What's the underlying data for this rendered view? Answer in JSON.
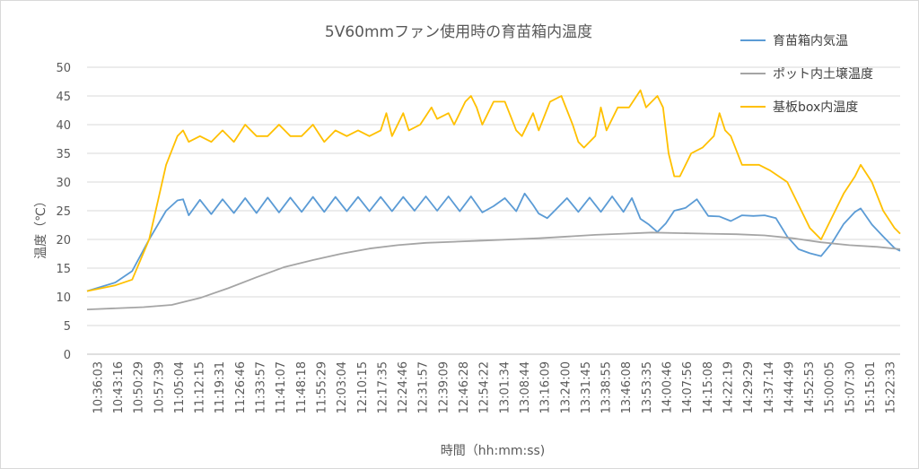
{
  "chart_data": {
    "type": "line",
    "title": "5V60mmファン使用時の育苗箱内温度",
    "xlabel": "時間（hh:mm:ss)",
    "ylabel": "温度（℃）",
    "ylim": [
      0,
      50
    ],
    "yticks": [
      0,
      5,
      10,
      15,
      20,
      25,
      30,
      35,
      40,
      45,
      50
    ],
    "xlim": [
      0,
      288
    ],
    "xtick_labels": [
      "10:36:03",
      "10:43:16",
      "10:50:29",
      "10:57:39",
      "11:05:04",
      "11:12:15",
      "11:19:31",
      "11:26:46",
      "11:33:57",
      "11:41:07",
      "11:48:18",
      "11:55:29",
      "12:03:04",
      "12:10:15",
      "12:17:35",
      "12:24:46",
      "12:31:57",
      "12:39:09",
      "12:46:28",
      "12:54:22",
      "13:01:34",
      "13:08:44",
      "13:16:09",
      "13:24:00",
      "13:31:45",
      "13:38:55",
      "13:46:08",
      "13:53:35",
      "14:00:46",
      "14:07:56",
      "14:15:08",
      "14:22:19",
      "14:29:29",
      "14:37:14",
      "14:44:49",
      "14:52:53",
      "15:00:05",
      "15:07:30",
      "15:15:01",
      "15:22:33"
    ],
    "series": [
      {
        "name": "育苗箱内気温",
        "color": "#5b9bd5",
        "points": [
          [
            0,
            11
          ],
          [
            10,
            12.5
          ],
          [
            16,
            14.5
          ],
          [
            22,
            20
          ],
          [
            28,
            25
          ],
          [
            32,
            26.8
          ],
          [
            34,
            27
          ],
          [
            36,
            24.2
          ],
          [
            40,
            26.9
          ],
          [
            44,
            24.4
          ],
          [
            48,
            27
          ],
          [
            52,
            24.6
          ],
          [
            56,
            27.2
          ],
          [
            60,
            24.6
          ],
          [
            64,
            27.3
          ],
          [
            68,
            24.7
          ],
          [
            72,
            27.3
          ],
          [
            76,
            24.8
          ],
          [
            80,
            27.4
          ],
          [
            84,
            24.8
          ],
          [
            88,
            27.4
          ],
          [
            92,
            24.9
          ],
          [
            96,
            27.4
          ],
          [
            100,
            24.9
          ],
          [
            104,
            27.4
          ],
          [
            108,
            24.9
          ],
          [
            112,
            27.4
          ],
          [
            116,
            25
          ],
          [
            120,
            27.5
          ],
          [
            124,
            25
          ],
          [
            128,
            27.5
          ],
          [
            132,
            24.9
          ],
          [
            136,
            27.5
          ],
          [
            140,
            24.7
          ],
          [
            144,
            25.8
          ],
          [
            148,
            27.2
          ],
          [
            152,
            24.9
          ],
          [
            155,
            28
          ],
          [
            158,
            26
          ],
          [
            160,
            24.5
          ],
          [
            163,
            23.7
          ],
          [
            166,
            25.2
          ],
          [
            170,
            27.2
          ],
          [
            174,
            24.8
          ],
          [
            178,
            27.3
          ],
          [
            182,
            24.8
          ],
          [
            186,
            27.5
          ],
          [
            190,
            24.8
          ],
          [
            193,
            27.2
          ],
          [
            196,
            23.6
          ],
          [
            199,
            22.6
          ],
          [
            202,
            21.3
          ],
          [
            205,
            22.8
          ],
          [
            208,
            25
          ],
          [
            212,
            25.5
          ],
          [
            216,
            27
          ],
          [
            220,
            24.1
          ],
          [
            224,
            24
          ],
          [
            228,
            23.2
          ],
          [
            232,
            24.2
          ],
          [
            236,
            24.1
          ],
          [
            240,
            24.2
          ],
          [
            244,
            23.7
          ],
          [
            248,
            20.5
          ],
          [
            252,
            18.3
          ],
          [
            256,
            17.6
          ],
          [
            260,
            17.1
          ],
          [
            264,
            19.5
          ],
          [
            268,
            22.7
          ],
          [
            272,
            24.8
          ],
          [
            274,
            25.4
          ],
          [
            278,
            22.6
          ],
          [
            282,
            20.5
          ],
          [
            286,
            18.5
          ],
          [
            288,
            18
          ]
        ]
      },
      {
        "name": "ポット内土壌温度",
        "color": "#a5a5a5",
        "points": [
          [
            0,
            7.8
          ],
          [
            20,
            8.2
          ],
          [
            30,
            8.6
          ],
          [
            40,
            9.8
          ],
          [
            50,
            11.5
          ],
          [
            60,
            13.4
          ],
          [
            70,
            15.2
          ],
          [
            80,
            16.4
          ],
          [
            90,
            17.5
          ],
          [
            100,
            18.4
          ],
          [
            110,
            19
          ],
          [
            120,
            19.4
          ],
          [
            130,
            19.6
          ],
          [
            140,
            19.8
          ],
          [
            150,
            20
          ],
          [
            160,
            20.2
          ],
          [
            170,
            20.5
          ],
          [
            180,
            20.8
          ],
          [
            190,
            21
          ],
          [
            200,
            21.2
          ],
          [
            210,
            21.1
          ],
          [
            220,
            21
          ],
          [
            230,
            20.9
          ],
          [
            240,
            20.7
          ],
          [
            250,
            20.2
          ],
          [
            260,
            19.5
          ],
          [
            270,
            19
          ],
          [
            280,
            18.7
          ],
          [
            288,
            18.3
          ]
        ]
      },
      {
        "name": "基板box内温度",
        "color": "#ffc000",
        "points": [
          [
            0,
            11
          ],
          [
            10,
            12
          ],
          [
            16,
            13
          ],
          [
            22,
            20
          ],
          [
            28,
            33
          ],
          [
            32,
            38
          ],
          [
            34,
            39
          ],
          [
            36,
            37
          ],
          [
            40,
            38
          ],
          [
            44,
            37
          ],
          [
            48,
            39
          ],
          [
            52,
            37
          ],
          [
            56,
            40
          ],
          [
            60,
            38
          ],
          [
            64,
            38
          ],
          [
            68,
            40
          ],
          [
            72,
            38
          ],
          [
            76,
            38
          ],
          [
            80,
            40
          ],
          [
            84,
            37
          ],
          [
            88,
            39
          ],
          [
            92,
            38
          ],
          [
            96,
            39
          ],
          [
            100,
            38
          ],
          [
            104,
            39
          ],
          [
            106,
            42
          ],
          [
            108,
            38
          ],
          [
            112,
            42
          ],
          [
            114,
            39
          ],
          [
            118,
            40
          ],
          [
            122,
            43
          ],
          [
            124,
            41
          ],
          [
            128,
            42
          ],
          [
            130,
            40
          ],
          [
            134,
            44
          ],
          [
            136,
            45
          ],
          [
            138,
            43
          ],
          [
            140,
            40
          ],
          [
            144,
            44
          ],
          [
            148,
            44
          ],
          [
            152,
            39
          ],
          [
            154,
            38
          ],
          [
            158,
            42
          ],
          [
            160,
            39
          ],
          [
            164,
            44
          ],
          [
            168,
            45
          ],
          [
            172,
            40
          ],
          [
            174,
            37
          ],
          [
            176,
            36
          ],
          [
            180,
            38
          ],
          [
            182,
            43
          ],
          [
            184,
            39
          ],
          [
            188,
            43
          ],
          [
            192,
            43
          ],
          [
            196,
            46
          ],
          [
            198,
            43
          ],
          [
            200,
            44
          ],
          [
            202,
            45
          ],
          [
            204,
            43
          ],
          [
            206,
            35
          ],
          [
            208,
            31
          ],
          [
            210,
            31
          ],
          [
            214,
            35
          ],
          [
            218,
            36
          ],
          [
            222,
            38
          ],
          [
            224,
            42
          ],
          [
            226,
            39
          ],
          [
            228,
            38
          ],
          [
            232,
            33
          ],
          [
            238,
            33
          ],
          [
            242,
            32
          ],
          [
            248,
            30
          ],
          [
            252,
            26
          ],
          [
            256,
            22
          ],
          [
            260,
            20
          ],
          [
            264,
            24
          ],
          [
            268,
            28
          ],
          [
            272,
            31
          ],
          [
            274,
            33
          ],
          [
            278,
            30
          ],
          [
            282,
            25
          ],
          [
            286,
            22
          ],
          [
            288,
            21
          ]
        ]
      }
    ],
    "legend_position": "right"
  }
}
